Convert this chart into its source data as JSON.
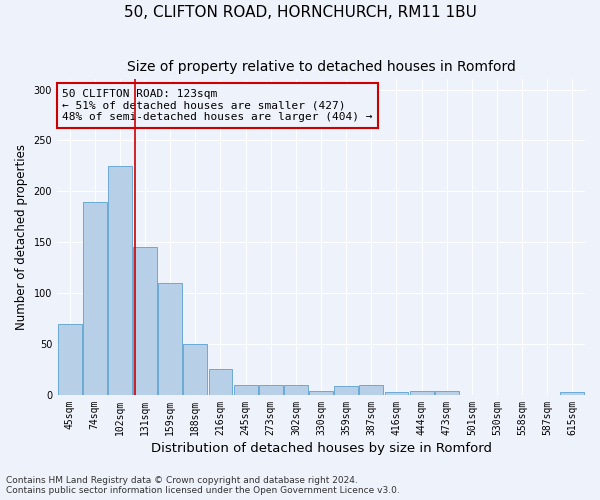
{
  "title": "50, CLIFTON ROAD, HORNCHURCH, RM11 1BU",
  "subtitle": "Size of property relative to detached houses in Romford",
  "xlabel": "Distribution of detached houses by size in Romford",
  "ylabel": "Number of detached properties",
  "categories": [
    "45sqm",
    "74sqm",
    "102sqm",
    "131sqm",
    "159sqm",
    "188sqm",
    "216sqm",
    "245sqm",
    "273sqm",
    "302sqm",
    "330sqm",
    "359sqm",
    "387sqm",
    "416sqm",
    "444sqm",
    "473sqm",
    "501sqm",
    "530sqm",
    "558sqm",
    "587sqm",
    "615sqm"
  ],
  "values": [
    70,
    190,
    225,
    145,
    110,
    50,
    25,
    10,
    10,
    10,
    4,
    9,
    10,
    3,
    4,
    4,
    0,
    0,
    0,
    0,
    3
  ],
  "bar_color": "#b8cfe8",
  "bar_edge_color": "#6aaad4",
  "vline_x_index": 2.62,
  "vline_color": "#cc0000",
  "annotation_box_text": "50 CLIFTON ROAD: 123sqm\n← 51% of detached houses are smaller (427)\n48% of semi-detached houses are larger (404) →",
  "annotation_box_color": "#cc0000",
  "ylim": [
    0,
    310
  ],
  "yticks": [
    0,
    50,
    100,
    150,
    200,
    250,
    300
  ],
  "background_color": "#eef2fa",
  "grid_color": "#ffffff",
  "footer_text": "Contains HM Land Registry data © Crown copyright and database right 2024.\nContains public sector information licensed under the Open Government Licence v3.0.",
  "title_fontsize": 11,
  "subtitle_fontsize": 10,
  "xlabel_fontsize": 9.5,
  "ylabel_fontsize": 8.5,
  "tick_fontsize": 7,
  "annotation_fontsize": 8,
  "footer_fontsize": 6.5
}
